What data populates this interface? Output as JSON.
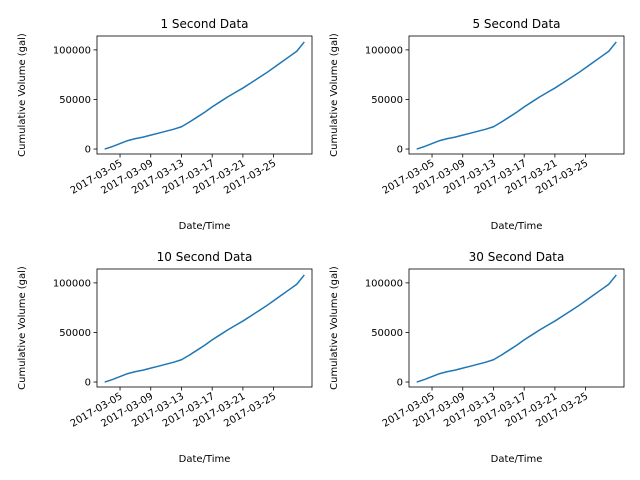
{
  "chart_data": [
    {
      "type": "line",
      "title": "1 Second Data",
      "xlabel": "Date/Time",
      "ylabel": "Cumulative Volume (gal)",
      "x_ticks": [
        "2017-03-05",
        "2017-03-09",
        "2017-03-13",
        "2017-03-17",
        "2017-03-21",
        "2017-03-25"
      ],
      "y_ticks": [
        "0",
        "50000",
        "100000"
      ],
      "xlim": [
        "2017-03-02",
        "2017-03-30"
      ],
      "ylim": [
        -5000,
        114000
      ],
      "grid": false,
      "x": [
        "2017-03-03",
        "2017-03-04",
        "2017-03-05",
        "2017-03-06",
        "2017-03-07",
        "2017-03-08",
        "2017-03-09",
        "2017-03-10",
        "2017-03-11",
        "2017-03-12",
        "2017-03-13",
        "2017-03-14",
        "2017-03-15",
        "2017-03-16",
        "2017-03-17",
        "2017-03-18",
        "2017-03-19",
        "2017-03-20",
        "2017-03-21",
        "2017-03-22",
        "2017-03-23",
        "2017-03-24",
        "2017-03-25",
        "2017-03-26",
        "2017-03-27",
        "2017-03-28",
        "2017-03-29"
      ],
      "series": [
        {
          "color": "#1f77b4",
          "values": [
            0,
            2500,
            5500,
            8500,
            10500,
            12000,
            14000,
            16000,
            18000,
            20000,
            22500,
            27000,
            32000,
            37000,
            42500,
            47500,
            52500,
            57000,
            61500,
            66500,
            71500,
            76500,
            82000,
            87500,
            93000,
            98500,
            108000
          ]
        }
      ]
    },
    {
      "type": "line",
      "title": "5 Second Data",
      "xlabel": "Date/Time",
      "ylabel": "Cumulative Volume (gal)",
      "x_ticks": [
        "2017-03-05",
        "2017-03-09",
        "2017-03-13",
        "2017-03-17",
        "2017-03-21",
        "2017-03-25"
      ],
      "y_ticks": [
        "0",
        "50000",
        "100000"
      ],
      "xlim": [
        "2017-03-02",
        "2017-03-30"
      ],
      "ylim": [
        -5000,
        114000
      ],
      "grid": false,
      "x": [
        "2017-03-03",
        "2017-03-04",
        "2017-03-05",
        "2017-03-06",
        "2017-03-07",
        "2017-03-08",
        "2017-03-09",
        "2017-03-10",
        "2017-03-11",
        "2017-03-12",
        "2017-03-13",
        "2017-03-14",
        "2017-03-15",
        "2017-03-16",
        "2017-03-17",
        "2017-03-18",
        "2017-03-19",
        "2017-03-20",
        "2017-03-21",
        "2017-03-22",
        "2017-03-23",
        "2017-03-24",
        "2017-03-25",
        "2017-03-26",
        "2017-03-27",
        "2017-03-28",
        "2017-03-29"
      ],
      "series": [
        {
          "color": "#1f77b4",
          "values": [
            0,
            2500,
            5500,
            8500,
            10500,
            12000,
            14000,
            16000,
            18000,
            20000,
            22500,
            27000,
            32000,
            37000,
            42500,
            47500,
            52500,
            57000,
            61500,
            66500,
            71500,
            76500,
            82000,
            87500,
            93000,
            98500,
            108000
          ]
        }
      ]
    },
    {
      "type": "line",
      "title": "10 Second Data",
      "xlabel": "Date/Time",
      "ylabel": "Cumulative Volume (gal)",
      "x_ticks": [
        "2017-03-05",
        "2017-03-09",
        "2017-03-13",
        "2017-03-17",
        "2017-03-21",
        "2017-03-25"
      ],
      "y_ticks": [
        "0",
        "50000",
        "100000"
      ],
      "xlim": [
        "2017-03-02",
        "2017-03-30"
      ],
      "ylim": [
        -5000,
        114000
      ],
      "grid": false,
      "x": [
        "2017-03-03",
        "2017-03-04",
        "2017-03-05",
        "2017-03-06",
        "2017-03-07",
        "2017-03-08",
        "2017-03-09",
        "2017-03-10",
        "2017-03-11",
        "2017-03-12",
        "2017-03-13",
        "2017-03-14",
        "2017-03-15",
        "2017-03-16",
        "2017-03-17",
        "2017-03-18",
        "2017-03-19",
        "2017-03-20",
        "2017-03-21",
        "2017-03-22",
        "2017-03-23",
        "2017-03-24",
        "2017-03-25",
        "2017-03-26",
        "2017-03-27",
        "2017-03-28",
        "2017-03-29"
      ],
      "series": [
        {
          "color": "#1f77b4",
          "values": [
            0,
            2500,
            5500,
            8500,
            10500,
            12000,
            14000,
            16000,
            18000,
            20000,
            22500,
            27000,
            32000,
            37000,
            42500,
            47500,
            52500,
            57000,
            61500,
            66500,
            71500,
            76500,
            82000,
            87500,
            93000,
            98500,
            108000
          ]
        }
      ]
    },
    {
      "type": "line",
      "title": "30 Second Data",
      "xlabel": "Date/Time",
      "ylabel": "Cumulative Volume (gal)",
      "x_ticks": [
        "2017-03-05",
        "2017-03-09",
        "2017-03-13",
        "2017-03-17",
        "2017-03-21",
        "2017-03-25"
      ],
      "y_ticks": [
        "0",
        "50000",
        "100000"
      ],
      "xlim": [
        "2017-03-02",
        "2017-03-30"
      ],
      "ylim": [
        -5000,
        114000
      ],
      "grid": false,
      "x": [
        "2017-03-03",
        "2017-03-04",
        "2017-03-05",
        "2017-03-06",
        "2017-03-07",
        "2017-03-08",
        "2017-03-09",
        "2017-03-10",
        "2017-03-11",
        "2017-03-12",
        "2017-03-13",
        "2017-03-14",
        "2017-03-15",
        "2017-03-16",
        "2017-03-17",
        "2017-03-18",
        "2017-03-19",
        "2017-03-20",
        "2017-03-21",
        "2017-03-22",
        "2017-03-23",
        "2017-03-24",
        "2017-03-25",
        "2017-03-26",
        "2017-03-27",
        "2017-03-28",
        "2017-03-29"
      ],
      "series": [
        {
          "color": "#1f77b4",
          "values": [
            0,
            2500,
            5500,
            8500,
            10500,
            12000,
            14000,
            16000,
            18000,
            20000,
            22500,
            27000,
            32000,
            37000,
            42500,
            47500,
            52500,
            57000,
            61500,
            66500,
            71500,
            76500,
            82000,
            87500,
            93000,
            98500,
            108000
          ]
        }
      ]
    }
  ]
}
